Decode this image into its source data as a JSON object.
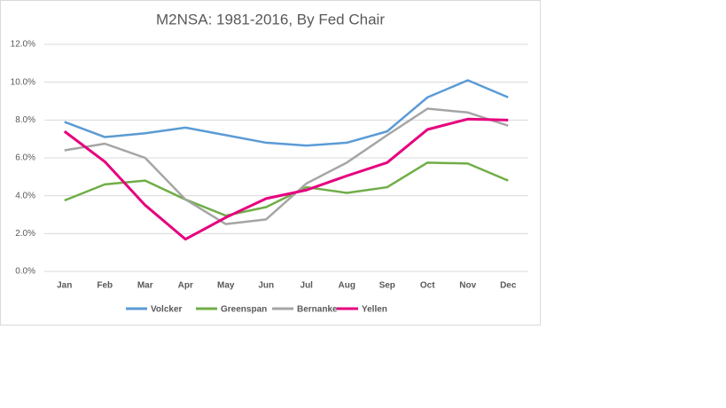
{
  "chart_data": {
    "type": "line",
    "title": "M2NSA: 1981-2016, By Fed Chair",
    "categories": [
      "Jan",
      "Feb",
      "Mar",
      "Apr",
      "May",
      "Jun",
      "Jul",
      "Aug",
      "Sep",
      "Oct",
      "Nov",
      "Dec"
    ],
    "series": [
      {
        "name": "Volcker",
        "color": "#5b9bd5",
        "values": [
          7.9,
          7.1,
          7.3,
          7.6,
          7.2,
          6.8,
          6.65,
          6.8,
          7.4,
          9.2,
          10.1,
          9.2
        ]
      },
      {
        "name": "Greenspan",
        "color": "#70ad47",
        "values": [
          3.75,
          4.6,
          4.8,
          3.8,
          2.95,
          3.4,
          4.45,
          4.15,
          4.45,
          5.75,
          5.7,
          4.8
        ]
      },
      {
        "name": "Bernanke",
        "color": "#a5a5a5",
        "values": [
          6.4,
          6.75,
          6.0,
          3.8,
          2.5,
          2.75,
          4.65,
          5.75,
          7.2,
          8.6,
          8.4,
          7.7
        ]
      },
      {
        "name": "Yellen",
        "color": "#e6007e",
        "values": [
          7.4,
          5.8,
          3.5,
          1.7,
          2.85,
          3.85,
          4.3,
          5.05,
          5.75,
          7.5,
          8.05,
          8.0
        ]
      }
    ],
    "ylim": [
      0,
      12
    ],
    "yticks": [
      {
        "value": 0,
        "label": "0.0%"
      },
      {
        "value": 2,
        "label": "2.0%"
      },
      {
        "value": 4,
        "label": "4.0%"
      },
      {
        "value": 6,
        "label": "6.0%"
      },
      {
        "value": 8,
        "label": "8.0%"
      },
      {
        "value": 10,
        "label": "10.0%"
      },
      {
        "value": 12,
        "label": "12.0%"
      }
    ],
    "grid": true,
    "legend": "bottom"
  }
}
